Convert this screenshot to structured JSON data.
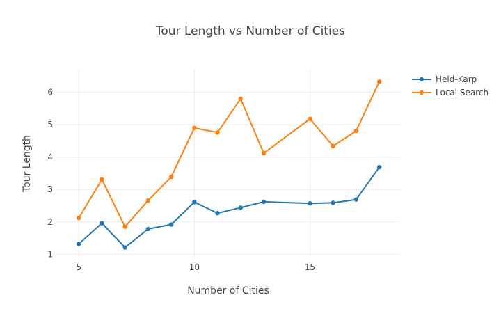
{
  "chart_data": {
    "type": "line",
    "title": "Tour Length vs Number of Cities",
    "xlabel": "Number of Cities",
    "ylabel": "Tour Length",
    "xlim": [
      4.0,
      18.9
    ],
    "ylim": [
      0.9,
      6.7
    ],
    "xticks": [
      5,
      10,
      15
    ],
    "yticks": [
      1,
      2,
      3,
      4,
      5,
      6
    ],
    "grid": true,
    "legend_position": "top-right",
    "series": [
      {
        "name": "Held-Karp",
        "color": "#1f77b4",
        "x": [
          5,
          6,
          7,
          8,
          9,
          10,
          11,
          12,
          13,
          15,
          16,
          17,
          18
        ],
        "y": [
          1.32,
          1.96,
          1.21,
          1.78,
          1.92,
          2.61,
          2.27,
          2.44,
          2.62,
          2.57,
          2.59,
          2.69,
          3.69
        ]
      },
      {
        "name": "Local Search",
        "color": "#ff7f0e",
        "x": [
          5,
          6,
          7,
          8,
          9,
          10,
          11,
          12,
          13,
          15,
          16,
          17,
          18
        ],
        "y": [
          2.12,
          3.31,
          1.85,
          2.66,
          3.39,
          4.9,
          4.76,
          5.8,
          4.12,
          5.18,
          4.34,
          4.81,
          6.33
        ]
      }
    ]
  }
}
